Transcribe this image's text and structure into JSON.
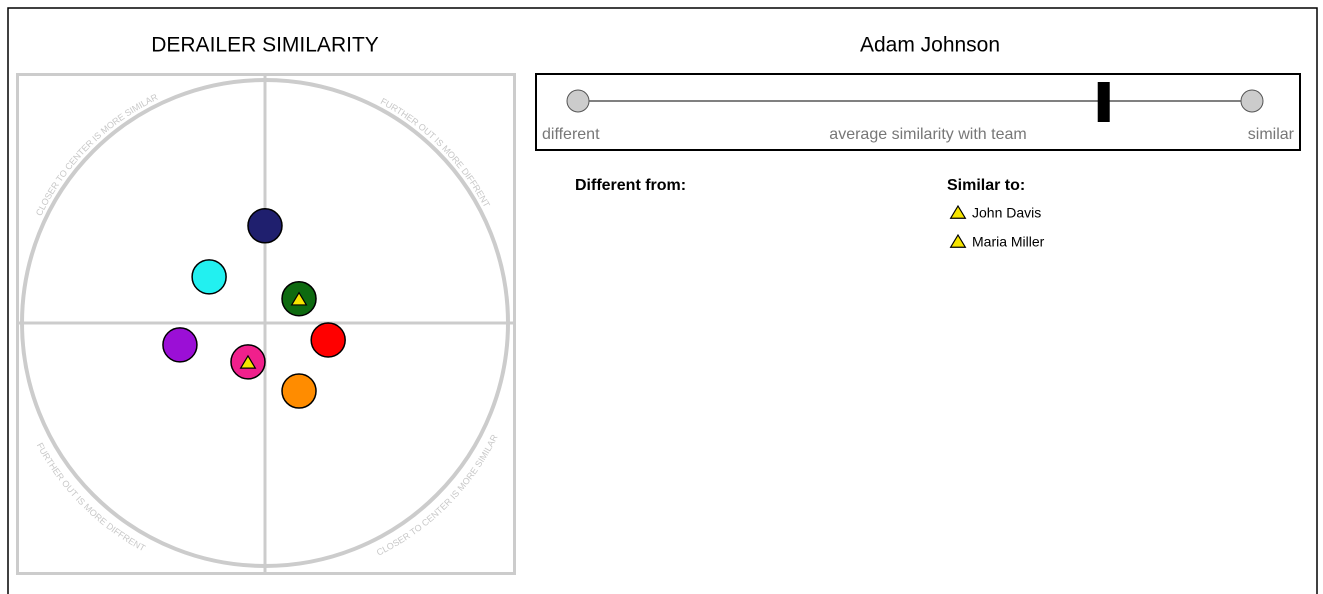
{
  "plot": {
    "title": "DERAILER SIMILARITY",
    "arc_labels": {
      "top_left": "CLOSER TO CENTER IS MORE SIMILAR",
      "top_right": "FURTHER OUT IS MORE DIFFRENT",
      "bottom_left": "FURTHER OUT IS MORE DIFFRENT",
      "bottom_right": "CLOSER TO CENTER IS MORE SIMILAR"
    },
    "lim": [
      -1,
      1
    ],
    "points": [
      {
        "x": 0.0,
        "y": 0.4,
        "color": "#1f1f6e",
        "similar": false
      },
      {
        "x": -0.23,
        "y": 0.19,
        "color": "#22f0f0",
        "similar": false
      },
      {
        "x": 0.14,
        "y": 0.1,
        "color": "#0e6a10",
        "similar": true
      },
      {
        "x": -0.35,
        "y": -0.09,
        "color": "#9b0fd6",
        "similar": false
      },
      {
        "x": 0.26,
        "y": -0.07,
        "color": "#ff0000",
        "similar": false
      },
      {
        "x": -0.07,
        "y": -0.16,
        "color": "#f0208c",
        "similar": true
      },
      {
        "x": 0.14,
        "y": -0.28,
        "color": "#ff8c00",
        "similar": false
      }
    ]
  },
  "person": "Adam Johnson",
  "slider": {
    "left_label": "different",
    "center_label": "average similarity with team",
    "right_label": "similar",
    "range": [
      0,
      1
    ],
    "value": 0.78
  },
  "different_from": {
    "heading": "Different from:",
    "items": []
  },
  "similar_to": {
    "heading": "Similar to:",
    "items": [
      "John Davis",
      "Maria Miller"
    ]
  }
}
